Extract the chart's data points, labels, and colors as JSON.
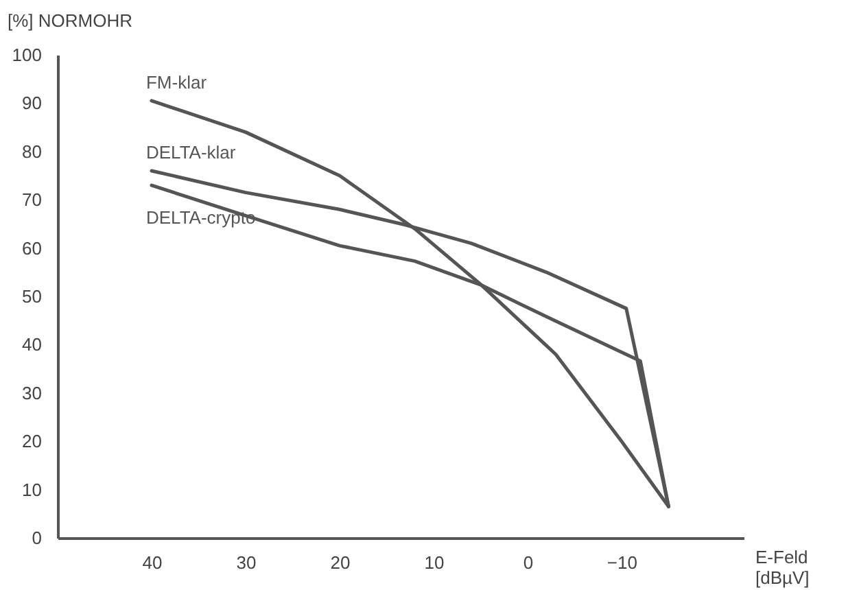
{
  "chart_data": {
    "type": "line",
    "xlabel": "E-Feld [dBµV]",
    "ylabel": "[%] NORMOHR",
    "xlim": [
      50,
      -23
    ],
    "xticks": [
      40,
      30,
      20,
      10,
      0,
      -10
    ],
    "ylim": [
      0,
      100
    ],
    "yticks": [
      0,
      10,
      20,
      30,
      40,
      50,
      60,
      70,
      80,
      90,
      100
    ],
    "grid": false,
    "marker": "none",
    "line_style": "solid",
    "series": [
      {
        "name": "FM-klar",
        "color": "#555555",
        "x": [
          40,
          30,
          20,
          12,
          5,
          -3,
          -10,
          -15
        ],
        "values": [
          90.5,
          84,
          75,
          64,
          52.5,
          38,
          20,
          6.5
        ]
      },
      {
        "name": "DELTA-klar",
        "color": "#555555",
        "x": [
          40,
          30,
          20,
          13,
          6,
          -2,
          -10.5,
          -15
        ],
        "values": [
          76,
          71.5,
          68,
          64.8,
          61,
          55,
          47.5,
          6.5
        ]
      },
      {
        "name": "DELTA-crypto",
        "color": "#555555",
        "x": [
          40,
          30,
          20,
          12,
          5,
          -2,
          -12,
          -15
        ],
        "values": [
          73,
          66.7,
          60.5,
          57.3,
          52.4,
          45.8,
          36.6,
          6.5
        ]
      }
    ]
  }
}
